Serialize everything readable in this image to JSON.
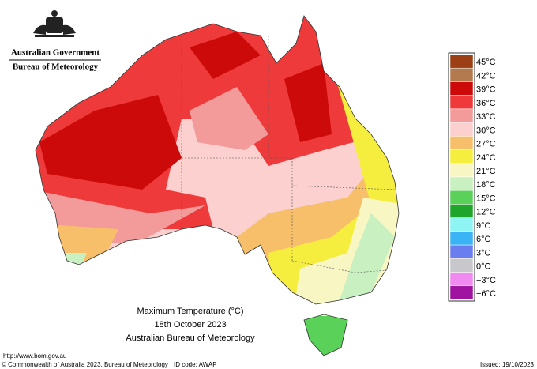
{
  "header": {
    "government": "Australian Government",
    "agency": "Bureau of Meteorology"
  },
  "title": {
    "line1": "Maximum Temperature (°C)",
    "line2": "18th October 2023",
    "line3": "Australian Bureau of Meteorology"
  },
  "legend": [
    {
      "label": "45°C",
      "color": "#9c3f14"
    },
    {
      "label": "42°C",
      "color": "#b27a4e"
    },
    {
      "label": "39°C",
      "color": "#cc0a0a"
    },
    {
      "label": "36°C",
      "color": "#ee3a3a"
    },
    {
      "label": "33°C",
      "color": "#f39a9a"
    },
    {
      "label": "30°C",
      "color": "#fbd0cf"
    },
    {
      "label": "27°C",
      "color": "#f7bf69"
    },
    {
      "label": "24°C",
      "color": "#f5ee3e"
    },
    {
      "label": "21°C",
      "color": "#f8f7c4"
    },
    {
      "label": "18°C",
      "color": "#c8f0c0"
    },
    {
      "label": "15°C",
      "color": "#5ad25a"
    },
    {
      "label": "12°C",
      "color": "#1fa62a"
    },
    {
      "label": "9°C",
      "color": "#8ef4f4"
    },
    {
      "label": "6°C",
      "color": "#3ab4f4"
    },
    {
      "label": "3°C",
      "color": "#6a7ef0"
    },
    {
      "label": "0°C",
      "color": "#c8c8cc"
    },
    {
      "label": "−3°C",
      "color": "#f08af0"
    },
    {
      "label": "−6°C",
      "color": "#a012a0"
    }
  ],
  "footer": {
    "url": "http://www.bom.gov.au",
    "copyright": "© Commonwealth of Australia 2023, Bureau of Meteorology",
    "id": "ID code: AWAP",
    "issued": "Issued: 19/10/2023"
  }
}
